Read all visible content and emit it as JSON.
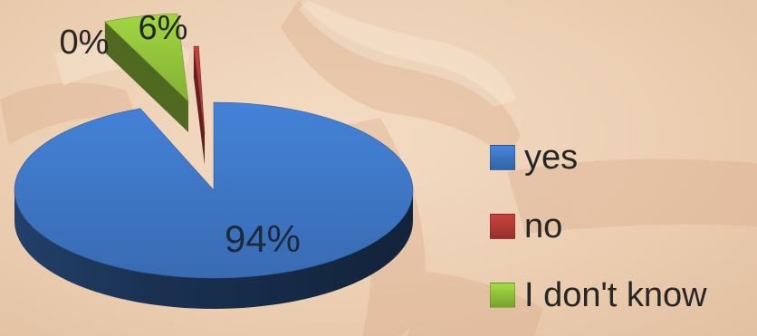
{
  "chart_data": {
    "type": "pie",
    "style": "3d-exploded",
    "legend_position": "right",
    "slices": [
      {
        "name": "yes",
        "value": 94,
        "label": "94%",
        "color": "#3d74c1"
      },
      {
        "name": "no",
        "value": 0,
        "label": "0%",
        "color": "#b03a36"
      },
      {
        "name": "I don't know",
        "value": 6,
        "label": "6%",
        "color": "#8fbf3a"
      }
    ]
  },
  "legend": [
    {
      "label": "yes",
      "color": "#3d74c1"
    },
    {
      "label": "no",
      "color": "#b03a36"
    },
    {
      "label": "I don't know",
      "color": "#8fbf3a"
    }
  ],
  "colors": {
    "background": "#efd6bd"
  }
}
